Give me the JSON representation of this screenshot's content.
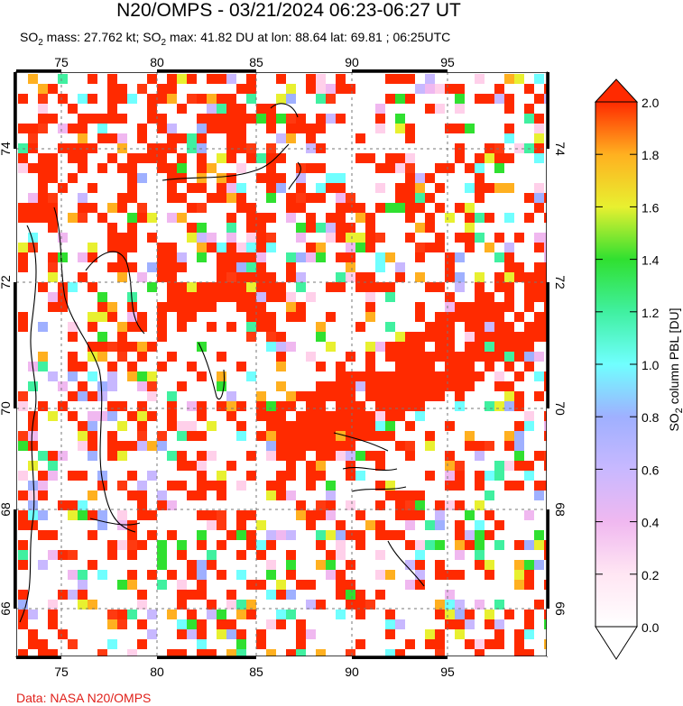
{
  "header": {
    "title": "N20/OMPS - 03/21/2024 06:23-06:27 UT",
    "subtitle_so": "SO",
    "subtitle_sub": "2",
    "subtitle_mass": " mass: 27.762 kt; SO",
    "subtitle_rest": " max: 41.82 DU at lon: 88.64 lat: 69.81 ; 06:25UTC"
  },
  "map": {
    "lon_ticks": [
      "75",
      "80",
      "85",
      "90",
      "95"
    ],
    "lat_ticks": [
      "74",
      "72",
      "70",
      "68",
      "66"
    ],
    "lon_range": [
      72.5,
      102
    ],
    "lat_range": [
      65.2,
      75.2
    ]
  },
  "colorbar": {
    "label_prefix": "SO",
    "label_sub": "2",
    "label_suffix": " column PBL [DU]",
    "ticks": [
      "2.0",
      "1.8",
      "1.6",
      "1.4",
      "1.2",
      "1.0",
      "0.8",
      "0.6",
      "0.4",
      "0.2",
      "0.0"
    ],
    "range": [
      0.0,
      2.0
    ]
  },
  "footer": {
    "credit": "Data: NASA N20/OMPS"
  }
}
